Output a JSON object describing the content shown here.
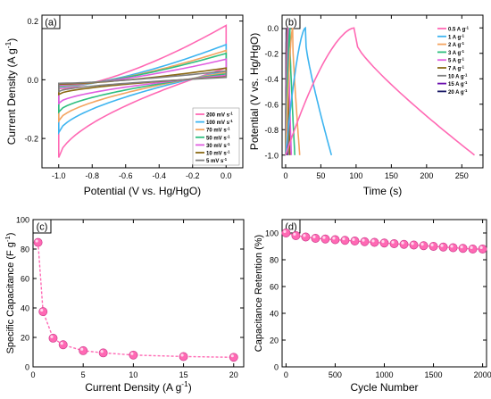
{
  "chart_data": [
    {
      "panel": "(a)",
      "type": "line",
      "xlabel": "Potential (V vs. Hg/HgO)",
      "ylabel": "Current Density (A g-1)",
      "xlim": [
        -1.1,
        0.1
      ],
      "ylim": [
        -0.3,
        0.22
      ],
      "xticks": [
        "-1.0",
        "-0.8",
        "-0.6",
        "-0.4",
        "-0.2",
        "0.0"
      ],
      "yticks": [
        "-0.2",
        "0.0",
        "0.2"
      ],
      "legend_position": "bottom-right",
      "legend_unit": "mV s-1",
      "series": [
        {
          "name": "200",
          "color": "#ff69b4",
          "top_start": -0.03,
          "top_end": 0.185,
          "bot_start": -0.265,
          "bot_end": 0.04
        },
        {
          "name": "100",
          "color": "#3db4f0",
          "top_start": -0.025,
          "top_end": 0.12,
          "bot_start": -0.18,
          "bot_end": 0.03
        },
        {
          "name": "70",
          "color": "#f4a460",
          "top_start": -0.022,
          "top_end": 0.1,
          "bot_start": -0.14,
          "bot_end": 0.025
        },
        {
          "name": "50",
          "color": "#2ebf7f",
          "top_start": -0.02,
          "top_end": 0.09,
          "bot_start": -0.11,
          "bot_end": 0.02
        },
        {
          "name": "30",
          "color": "#e05ee0",
          "top_start": -0.018,
          "top_end": 0.07,
          "bot_start": -0.08,
          "bot_end": 0.015
        },
        {
          "name": "10",
          "color": "#8b6914",
          "top_start": -0.015,
          "top_end": 0.04,
          "bot_start": -0.05,
          "bot_end": 0.01
        },
        {
          "name": "5",
          "color": "#808080",
          "top_start": -0.012,
          "top_end": 0.03,
          "bot_start": -0.04,
          "bot_end": 0.008
        }
      ]
    },
    {
      "panel": "(b)",
      "type": "line",
      "xlabel": "Time (s)",
      "ylabel": "Potential (V vs. Hg/HgO)",
      "xlim": [
        -5,
        280
      ],
      "ylim": [
        -1.1,
        0.1
      ],
      "xticks": [
        "0",
        "50",
        "100",
        "150",
        "200",
        "250"
      ],
      "yticks": [
        "-1.0",
        "-0.8",
        "-0.6",
        "-0.4",
        "-0.2",
        "0.0"
      ],
      "legend_position": "top-right",
      "legend_unit": "A g-1",
      "series": [
        {
          "name": "0.5",
          "color": "#ff69b4",
          "charge_time": 97,
          "discharge_end": 268
        },
        {
          "name": "1",
          "color": "#3db4f0",
          "charge_time": 28,
          "discharge_end": 65
        },
        {
          "name": "2",
          "color": "#f4a460",
          "charge_time": 10,
          "discharge_end": 20
        },
        {
          "name": "3",
          "color": "#2ebf7f",
          "charge_time": 6,
          "discharge_end": 13
        },
        {
          "name": "5",
          "color": "#e05ee0",
          "charge_time": 4,
          "discharge_end": 8
        },
        {
          "name": "7",
          "color": "#8b6914",
          "charge_time": 3,
          "discharge_end": 6
        },
        {
          "name": "10",
          "color": "#808080",
          "charge_time": 2,
          "discharge_end": 4
        },
        {
          "name": "15",
          "color": "#6a0dad",
          "charge_time": 1.5,
          "discharge_end": 3
        },
        {
          "name": "20",
          "color": "#1a1a66",
          "charge_time": 1,
          "discharge_end": 2
        }
      ]
    },
    {
      "panel": "(c)",
      "type": "scatter",
      "xlabel": "Current Density (A g-1)",
      "ylabel": "Specific Capacitance (F g-1)",
      "xlim": [
        0,
        21
      ],
      "ylim": [
        0,
        100
      ],
      "xticks": [
        "0",
        "5",
        "10",
        "15",
        "20"
      ],
      "yticks": [
        "0",
        "20",
        "40",
        "60",
        "80",
        "100"
      ],
      "color": "#ff69b4",
      "x": [
        0.5,
        1,
        2,
        3,
        5,
        7,
        10,
        15,
        20
      ],
      "y": [
        84.5,
        37.5,
        19.5,
        15,
        11,
        9.5,
        8,
        7,
        6.5
      ]
    },
    {
      "panel": "(d)",
      "type": "scatter",
      "xlabel": "Cycle Number",
      "ylabel": "Capacitance Retention (%)",
      "xlim": [
        -40,
        2040
      ],
      "ylim": [
        0,
        110
      ],
      "xticks": [
        "0",
        "500",
        "1000",
        "1500",
        "2000"
      ],
      "yticks": [
        "0",
        "20",
        "40",
        "60",
        "80",
        "100"
      ],
      "color": "#ff69b4",
      "x": [
        0,
        100,
        200,
        300,
        400,
        500,
        600,
        700,
        800,
        900,
        1000,
        1100,
        1200,
        1300,
        1400,
        1500,
        1600,
        1700,
        1800,
        1900,
        2000
      ],
      "y": [
        100,
        98,
        97,
        96,
        95.5,
        95,
        94.5,
        94,
        93.5,
        93,
        92.5,
        92,
        91.5,
        91,
        90.5,
        90,
        89.5,
        89,
        88.5,
        88,
        88
      ]
    }
  ]
}
